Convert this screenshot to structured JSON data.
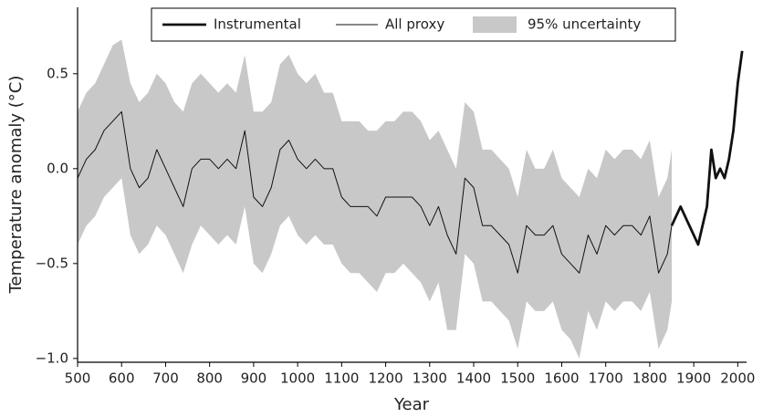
{
  "chart_data": {
    "type": "line",
    "xlabel": "Year",
    "ylabel": "Temperature anomaly (°C)",
    "xlim": [
      500,
      2020
    ],
    "ylim": [
      -1.02,
      0.85
    ],
    "xticks": [
      500,
      600,
      700,
      800,
      900,
      1000,
      1100,
      1200,
      1300,
      1400,
      1500,
      1600,
      1700,
      1800,
      1900,
      2000
    ],
    "yticks": [
      0.5,
      {
        "value": 0,
        "label": "0.0"
      },
      {
        "value": -0.5,
        "label": "−0.5"
      },
      {
        "value": -1,
        "label": "−1.0"
      }
    ],
    "legend": "top",
    "band": {
      "name": "95% uncertainty",
      "color": "#c8c8c8",
      "x": [
        500,
        520,
        540,
        560,
        580,
        600,
        620,
        640,
        660,
        680,
        700,
        720,
        740,
        760,
        780,
        800,
        820,
        840,
        860,
        880,
        900,
        920,
        940,
        960,
        980,
        1000,
        1020,
        1040,
        1060,
        1080,
        1100,
        1120,
        1140,
        1160,
        1180,
        1200,
        1220,
        1240,
        1260,
        1280,
        1300,
        1320,
        1340,
        1360,
        1380,
        1400,
        1420,
        1440,
        1460,
        1480,
        1500,
        1520,
        1540,
        1560,
        1580,
        1600,
        1620,
        1640,
        1660,
        1680,
        1700,
        1720,
        1740,
        1760,
        1780,
        1800,
        1820,
        1840,
        1850
      ],
      "upper": [
        0.3,
        0.4,
        0.45,
        0.55,
        0.65,
        0.68,
        0.45,
        0.35,
        0.4,
        0.5,
        0.45,
        0.35,
        0.3,
        0.45,
        0.5,
        0.45,
        0.4,
        0.45,
        0.4,
        0.6,
        0.3,
        0.3,
        0.35,
        0.55,
        0.6,
        0.5,
        0.45,
        0.5,
        0.4,
        0.4,
        0.25,
        0.25,
        0.25,
        0.2,
        0.2,
        0.25,
        0.25,
        0.3,
        0.3,
        0.25,
        0.15,
        0.2,
        0.1,
        0.0,
        0.35,
        0.3,
        0.1,
        0.1,
        0.05,
        0.0,
        -0.15,
        0.1,
        0.0,
        0.0,
        0.1,
        -0.05,
        -0.1,
        -0.15,
        0.0,
        -0.05,
        0.1,
        0.05,
        0.1,
        0.1,
        0.05,
        0.15,
        -0.15,
        -0.05,
        0.1
      ],
      "lower": [
        -0.4,
        -0.3,
        -0.25,
        -0.15,
        -0.1,
        -0.05,
        -0.35,
        -0.45,
        -0.4,
        -0.3,
        -0.35,
        -0.45,
        -0.55,
        -0.4,
        -0.3,
        -0.35,
        -0.4,
        -0.35,
        -0.4,
        -0.2,
        -0.5,
        -0.55,
        -0.45,
        -0.3,
        -0.25,
        -0.35,
        -0.4,
        -0.35,
        -0.4,
        -0.4,
        -0.5,
        -0.55,
        -0.55,
        -0.6,
        -0.65,
        -0.55,
        -0.55,
        -0.5,
        -0.55,
        -0.6,
        -0.7,
        -0.6,
        -0.85,
        -0.85,
        -0.45,
        -0.5,
        -0.7,
        -0.7,
        -0.75,
        -0.8,
        -0.95,
        -0.7,
        -0.75,
        -0.75,
        -0.7,
        -0.85,
        -0.9,
        -1.0,
        -0.75,
        -0.85,
        -0.7,
        -0.75,
        -0.7,
        -0.7,
        -0.75,
        -0.65,
        -0.95,
        -0.85,
        -0.7
      ]
    },
    "series": [
      {
        "name": "Instrumental",
        "color": "#111111",
        "line_width": 2.8,
        "x": [
          1850,
          1860,
          1870,
          1880,
          1890,
          1900,
          1910,
          1920,
          1930,
          1940,
          1950,
          1960,
          1970,
          1980,
          1990,
          2000,
          2010
        ],
        "values": [
          -0.3,
          -0.25,
          -0.2,
          -0.25,
          -0.3,
          -0.35,
          -0.4,
          -0.3,
          -0.2,
          0.1,
          -0.05,
          0.0,
          -0.05,
          0.05,
          0.2,
          0.45,
          0.62
        ]
      },
      {
        "name": "All proxy",
        "color": "#111111",
        "line_width": 1,
        "x": [
          500,
          520,
          540,
          560,
          580,
          600,
          620,
          640,
          660,
          680,
          700,
          720,
          740,
          760,
          780,
          800,
          820,
          840,
          860,
          880,
          900,
          920,
          940,
          960,
          980,
          1000,
          1020,
          1040,
          1060,
          1080,
          1100,
          1120,
          1140,
          1160,
          1180,
          1200,
          1220,
          1240,
          1260,
          1280,
          1300,
          1320,
          1340,
          1360,
          1380,
          1400,
          1420,
          1440,
          1460,
          1480,
          1500,
          1520,
          1540,
          1560,
          1580,
          1600,
          1620,
          1640,
          1660,
          1680,
          1700,
          1720,
          1740,
          1760,
          1780,
          1800,
          1820,
          1840,
          1850
        ],
        "values": [
          -0.05,
          0.05,
          0.1,
          0.2,
          0.25,
          0.3,
          0.0,
          -0.1,
          -0.05,
          0.1,
          0.0,
          -0.1,
          -0.2,
          0.0,
          0.05,
          0.05,
          0.0,
          0.05,
          0.0,
          0.2,
          -0.15,
          -0.2,
          -0.1,
          0.1,
          0.15,
          0.05,
          0.0,
          0.05,
          0.0,
          0.0,
          -0.15,
          -0.2,
          -0.2,
          -0.2,
          -0.25,
          -0.15,
          -0.15,
          -0.15,
          -0.15,
          -0.2,
          -0.3,
          -0.2,
          -0.35,
          -0.45,
          -0.05,
          -0.1,
          -0.3,
          -0.3,
          -0.35,
          -0.4,
          -0.55,
          -0.3,
          -0.35,
          -0.35,
          -0.3,
          -0.45,
          -0.5,
          -0.55,
          -0.35,
          -0.45,
          -0.3,
          -0.35,
          -0.3,
          -0.3,
          -0.35,
          -0.25,
          -0.55,
          -0.45,
          -0.3
        ]
      }
    ]
  }
}
